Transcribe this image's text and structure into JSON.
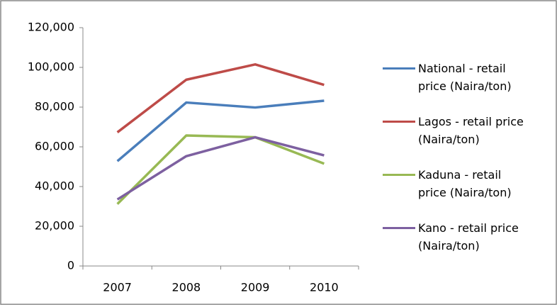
{
  "chart_data": {
    "type": "line",
    "categories": [
      "2007",
      "2008",
      "2009",
      "2010"
    ],
    "series": [
      {
        "name": "National - retail price (Naira/ton)",
        "color": "#4a7ebb",
        "values": [
          52800,
          82300,
          79800,
          83200
        ]
      },
      {
        "name": "Lagos - retail price (Naira/ton)",
        "color": "#be4b48",
        "values": [
          67300,
          93800,
          101500,
          91200
        ]
      },
      {
        "name": "Kaduna - retail price (Naira/ton)",
        "color": "#98b954",
        "values": [
          31200,
          65700,
          64800,
          51500
        ]
      },
      {
        "name": "Kano - retail price (Naira/ton)",
        "color": "#7d60a0",
        "values": [
          33500,
          55300,
          64800,
          55700
        ]
      }
    ],
    "ylim": [
      0,
      120000
    ],
    "yticks": [
      0,
      {
        "value": 20000,
        "label": "20,000"
      },
      {
        "value": 40000,
        "label": "40,000"
      },
      {
        "value": 60000,
        "label": "60,000"
      },
      {
        "value": 80000,
        "label": "80,000"
      },
      {
        "value": 100000,
        "label": "100,000"
      },
      {
        "value": 120000,
        "label": "120,000"
      }
    ],
    "legend": "right"
  }
}
